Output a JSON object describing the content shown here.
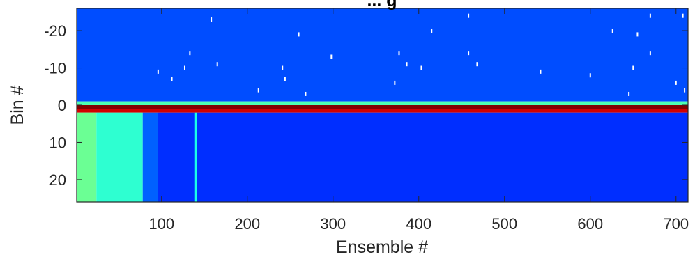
{
  "chart_data": {
    "type": "heatmap",
    "title": "... g",
    "xlabel": "Ensemble #",
    "ylabel": "Bin #",
    "x_ticks": [
      100,
      200,
      300,
      400,
      500,
      600,
      700
    ],
    "y_ticks": [
      -20,
      -10,
      0,
      10,
      20
    ],
    "xlim": [
      1,
      714
    ],
    "ylim": [
      -26,
      26
    ],
    "y_reversed": true,
    "colormap": "jet",
    "regions": [
      {
        "bins": [
          -26,
          -1
        ],
        "ensembles": [
          1,
          714
        ],
        "level": 0.2
      },
      {
        "bins": [
          -1,
          0
        ],
        "ensembles": [
          1,
          714
        ],
        "level": 0.45
      },
      {
        "bins": [
          0,
          1
        ],
        "ensembles": [
          1,
          714
        ],
        "level": 1.0
      },
      {
        "bins": [
          1,
          2
        ],
        "ensembles": [
          1,
          714
        ],
        "level": 0.92
      },
      {
        "bins": [
          2,
          26
        ],
        "ensembles": [
          1,
          24
        ],
        "level": 0.48
      },
      {
        "bins": [
          2,
          26
        ],
        "ensembles": [
          24,
          78
        ],
        "level": 0.42
      },
      {
        "bins": [
          2,
          26
        ],
        "ensembles": [
          78,
          96
        ],
        "level": 0.22
      },
      {
        "bins": [
          2,
          26
        ],
        "ensembles": [
          96,
          714
        ],
        "level": 0.17
      },
      {
        "bins": [
          2,
          26
        ],
        "ensembles": [
          139,
          141
        ],
        "level": 0.4
      }
    ],
    "spikes": [
      {
        "ensemble": 158,
        "bin": -23
      },
      {
        "ensemble": 260,
        "bin": -19
      },
      {
        "ensemble": 415,
        "bin": -20
      },
      {
        "ensemble": 458,
        "bin": -24
      },
      {
        "ensemble": 626,
        "bin": -20
      },
      {
        "ensemble": 655,
        "bin": -19
      },
      {
        "ensemble": 670,
        "bin": -24
      },
      {
        "ensemble": 708,
        "bin": -24
      },
      {
        "ensemble": 133,
        "bin": -14
      },
      {
        "ensemble": 298,
        "bin": -13
      },
      {
        "ensemble": 377,
        "bin": -14
      },
      {
        "ensemble": 458,
        "bin": -14
      },
      {
        "ensemble": 670,
        "bin": -14
      },
      {
        "ensemble": 165,
        "bin": -11
      },
      {
        "ensemble": 386,
        "bin": -11
      },
      {
        "ensemble": 468,
        "bin": -11
      },
      {
        "ensemble": 127,
        "bin": -10
      },
      {
        "ensemble": 241,
        "bin": -10
      },
      {
        "ensemble": 403,
        "bin": -10
      },
      {
        "ensemble": 650,
        "bin": -10
      },
      {
        "ensemble": 96,
        "bin": -9
      },
      {
        "ensemble": 542,
        "bin": -9
      },
      {
        "ensemble": 600,
        "bin": -8
      },
      {
        "ensemble": 112,
        "bin": -7
      },
      {
        "ensemble": 244,
        "bin": -7
      },
      {
        "ensemble": 372,
        "bin": -6
      },
      {
        "ensemble": 700,
        "bin": -6
      },
      {
        "ensemble": 213,
        "bin": -4
      },
      {
        "ensemble": 710,
        "bin": -4
      },
      {
        "ensemble": 268,
        "bin": -3
      },
      {
        "ensemble": 645,
        "bin": -3
      }
    ]
  }
}
